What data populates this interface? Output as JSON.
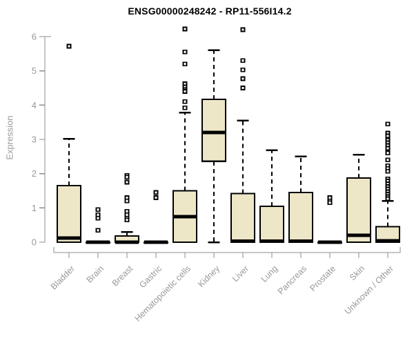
{
  "chart_data": {
    "type": "box",
    "title": "ENSG00000248242 - RP11-556I14.2",
    "ylabel": "Expression",
    "ylim": [
      0,
      6
    ],
    "yticks": [
      0,
      1,
      2,
      3,
      4,
      5,
      6
    ],
    "grid": false,
    "legend": false,
    "categories": [
      "Bladder",
      "Brain",
      "Breast",
      "Gastric",
      "Hematopoietic cells",
      "Kidney",
      "Liver",
      "Lung",
      "Pancreas",
      "Prostate",
      "Skin",
      "Unknown / Other"
    ],
    "series": [
      {
        "category": "Bladder",
        "whisker_low": 0,
        "q1": 0,
        "median": 0.12,
        "q3": 1.65,
        "whisker_high": 3.02,
        "outliers": [
          5.72
        ]
      },
      {
        "category": "Brain",
        "whisker_low": 0,
        "q1": 0,
        "median": 0,
        "q3": 0,
        "whisker_high": 0,
        "outliers": [
          0.95,
          0.8,
          0.7,
          0.35
        ]
      },
      {
        "category": "Breast",
        "whisker_low": 0,
        "q1": 0,
        "median": 0,
        "q3": 0.18,
        "whisker_high": 0.3,
        "outliers": [
          1.95,
          1.9,
          1.75,
          1.3,
          1.2,
          0.9,
          0.8,
          0.7,
          0.65
        ]
      },
      {
        "category": "Gastric",
        "whisker_low": 0,
        "q1": 0,
        "median": 0,
        "q3": 0,
        "whisker_high": 0,
        "outliers": [
          1.45,
          1.3
        ]
      },
      {
        "category": "Hematopoietic cells",
        "whisker_low": 0,
        "q1": 0,
        "median": 0.75,
        "q3": 1.5,
        "whisker_high": 3.78,
        "outliers": [
          6.22,
          5.55,
          5.2,
          4.62,
          4.53,
          4.45,
          4.4,
          4.1,
          3.92
        ]
      },
      {
        "category": "Kidney",
        "whisker_low": 0,
        "q1": 2.36,
        "median": 3.2,
        "q3": 4.17,
        "whisker_high": 5.6,
        "outliers": []
      },
      {
        "category": "Liver",
        "whisker_low": 0,
        "q1": 0,
        "median": 0.03,
        "q3": 1.42,
        "whisker_high": 3.55,
        "outliers": [
          6.2,
          5.3,
          5.03,
          4.77,
          4.5
        ]
      },
      {
        "category": "Lung",
        "whisker_low": 0,
        "q1": 0,
        "median": 0.03,
        "q3": 1.05,
        "whisker_high": 2.68,
        "outliers": []
      },
      {
        "category": "Pancreas",
        "whisker_low": 0,
        "q1": 0,
        "median": 0.03,
        "q3": 1.45,
        "whisker_high": 2.5,
        "outliers": []
      },
      {
        "category": "Prostate",
        "whisker_low": 0,
        "q1": 0,
        "median": 0,
        "q3": 0,
        "whisker_high": 0,
        "outliers": [
          1.3,
          1.2,
          1.15
        ]
      },
      {
        "category": "Skin",
        "whisker_low": 0,
        "q1": 0,
        "median": 0.2,
        "q3": 1.87,
        "whisker_high": 2.55,
        "outliers": []
      },
      {
        "category": "Unknown / Other",
        "whisker_low": 0,
        "q1": 0,
        "median": 0.04,
        "q3": 0.45,
        "whisker_high": 1.2,
        "outliers": [
          3.45,
          3.18,
          3.1,
          2.98,
          2.9,
          2.82,
          2.74,
          2.6,
          2.4,
          2.23,
          2.15,
          2.07,
          1.85,
          1.78,
          1.7,
          1.62,
          1.55,
          1.47,
          1.4,
          1.33,
          1.27
        ]
      }
    ],
    "colors": {
      "box_fill": "#EDE7C8",
      "box_stroke": "#000000",
      "median": "#000000",
      "whisker": "#000000",
      "axis_line": "#8C8C8C",
      "tick_label": "#999999",
      "title": "#000000",
      "background": "#FFFFFF"
    }
  }
}
